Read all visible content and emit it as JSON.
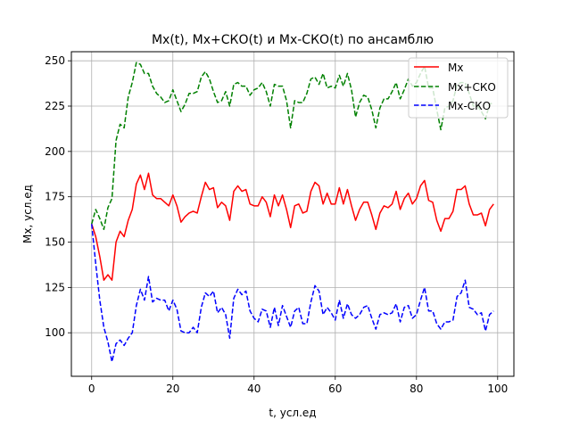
{
  "chart_data": {
    "type": "line",
    "title": "Mx(t),  Mx+СКО(t) и Mx-СКО(t) по ансамблю",
    "xlabel": "t, усл.ед",
    "ylabel": "Mx, усл.ед",
    "xlim": [
      -5,
      104
    ],
    "ylim": [
      76,
      255
    ],
    "xticks": [
      0,
      20,
      40,
      60,
      80,
      100
    ],
    "yticks": [
      100,
      125,
      150,
      175,
      200,
      225,
      250
    ],
    "grid": true,
    "legend_position": "upper right",
    "x": [
      0,
      1,
      2,
      3,
      4,
      5,
      6,
      7,
      8,
      9,
      10,
      11,
      12,
      13,
      14,
      15,
      16,
      17,
      18,
      19,
      20,
      21,
      22,
      23,
      24,
      25,
      26,
      27,
      28,
      29,
      30,
      31,
      32,
      33,
      34,
      35,
      36,
      37,
      38,
      39,
      40,
      41,
      42,
      43,
      44,
      45,
      46,
      47,
      48,
      49,
      50,
      51,
      52,
      53,
      54,
      55,
      56,
      57,
      58,
      59,
      60,
      61,
      62,
      63,
      64,
      65,
      66,
      67,
      68,
      69,
      70,
      71,
      72,
      73,
      74,
      75,
      76,
      77,
      78,
      79,
      80,
      81,
      82,
      83,
      84,
      85,
      86,
      87,
      88,
      89,
      90,
      91,
      92,
      93,
      94,
      95,
      96,
      97,
      98,
      99
    ],
    "series": [
      {
        "name": "Mx",
        "color": "#ff0000",
        "dash": "solid",
        "values": [
          160,
          153,
          142,
          129,
          132,
          129,
          150,
          156,
          153,
          162,
          168,
          182,
          187,
          179,
          188,
          176,
          174,
          174,
          172,
          170,
          176,
          170,
          161,
          164,
          166,
          167,
          166,
          175,
          183,
          179,
          180,
          169,
          172,
          170,
          162,
          178,
          181,
          178,
          179,
          171,
          170,
          170,
          175,
          172,
          164,
          176,
          170,
          176,
          168,
          158,
          170,
          171,
          166,
          167,
          178,
          183,
          181,
          171,
          177,
          171,
          171,
          180,
          171,
          179,
          170,
          162,
          168,
          172,
          172,
          165,
          157,
          166,
          170,
          169,
          171,
          178,
          168,
          174,
          177,
          171,
          174,
          181,
          184,
          173,
          172,
          162,
          156,
          163,
          163,
          167,
          179,
          179,
          181,
          171,
          165,
          165,
          166,
          159,
          168,
          171
        ]
      },
      {
        "name": "Mx+СКО",
        "color": "#008000",
        "dash": "dashed",
        "values": [
          160,
          168,
          163,
          157,
          169,
          174,
          206,
          215,
          213,
          230,
          238,
          249,
          248,
          243,
          243,
          236,
          232,
          230,
          227,
          228,
          234,
          228,
          222,
          226,
          232,
          232,
          233,
          241,
          244,
          240,
          233,
          227,
          228,
          233,
          225,
          237,
          238,
          236,
          236,
          231,
          234,
          235,
          238,
          233,
          225,
          237,
          236,
          236,
          228,
          213,
          228,
          227,
          227,
          232,
          240,
          241,
          237,
          243,
          235,
          236,
          235,
          242,
          236,
          243,
          234,
          219,
          227,
          231,
          230,
          223,
          213,
          224,
          229,
          229,
          233,
          238,
          229,
          234,
          240,
          236,
          238,
          243,
          247,
          235,
          235,
          223,
          212,
          224,
          225,
          228,
          237,
          238,
          238,
          232,
          225,
          225,
          222,
          218,
          226,
          227
        ]
      },
      {
        "name": "Mx-СКО",
        "color": "#0000ff",
        "dash": "dashed",
        "values": [
          160,
          138,
          118,
          103,
          95,
          84,
          94,
          96,
          93,
          97,
          100,
          115,
          124,
          118,
          131,
          117,
          119,
          118,
          118,
          112,
          118,
          113,
          101,
          100,
          100,
          103,
          100,
          114,
          122,
          120,
          123,
          111,
          114,
          110,
          97,
          119,
          124,
          121,
          123,
          112,
          108,
          106,
          113,
          112,
          103,
          114,
          104,
          115,
          109,
          103,
          112,
          114,
          105,
          105,
          117,
          126,
          123,
          110,
          114,
          111,
          107,
          118,
          108,
          116,
          110,
          108,
          110,
          114,
          115,
          108,
          102,
          110,
          111,
          110,
          111,
          116,
          106,
          114,
          115,
          108,
          110,
          118,
          125,
          112,
          112,
          105,
          102,
          106,
          106,
          107,
          120,
          122,
          129,
          114,
          113,
          110,
          111,
          101,
          110,
          112
        ]
      }
    ]
  }
}
